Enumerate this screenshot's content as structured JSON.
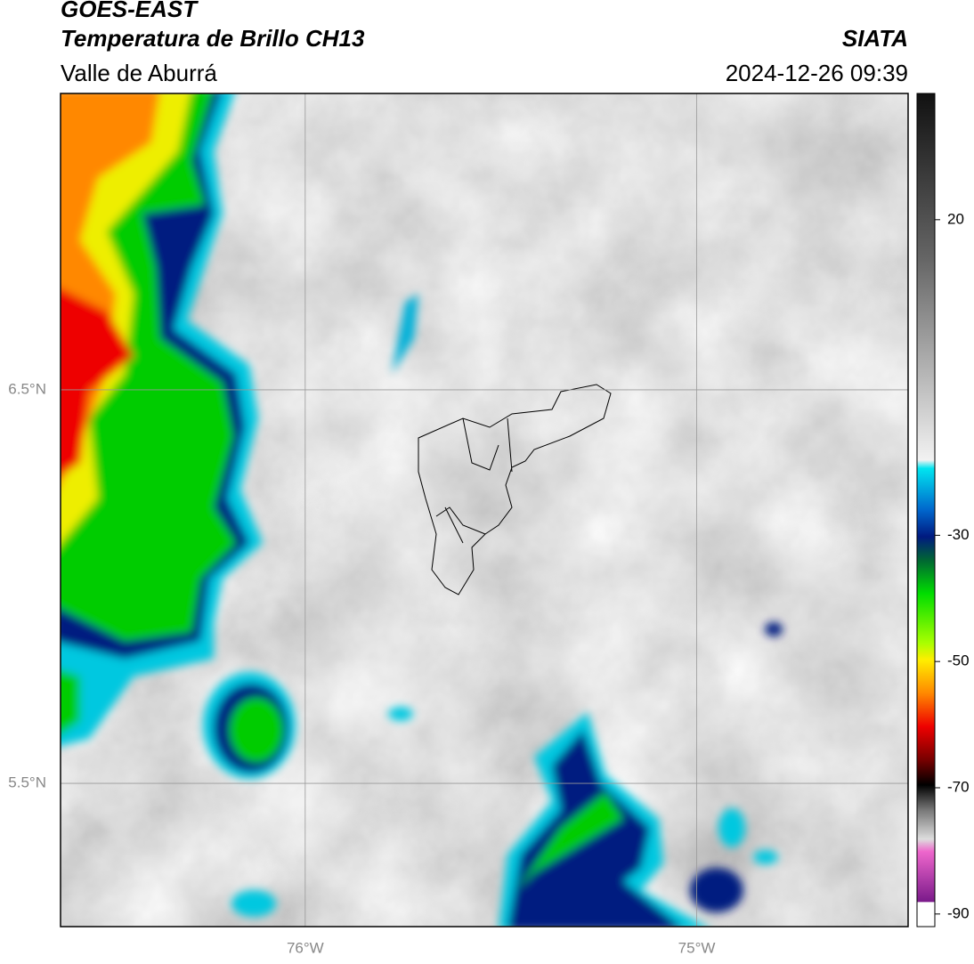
{
  "header": {
    "satellite": "GOES-EAST",
    "product": "Temperatura de Brillo CH13",
    "region": "Valle de Aburrá",
    "source": "SIATA",
    "timestamp": "2024-12-26 09:39"
  },
  "map": {
    "lonlim": [
      -76.625,
      -74.46
    ],
    "latlim": [
      5.136,
      7.253
    ],
    "lonticks": [
      {
        "value": -76,
        "label": "76°W"
      },
      {
        "value": -75,
        "label": "75°W"
      }
    ],
    "latticks": [
      {
        "value": 6.5,
        "label": "6.5°N"
      },
      {
        "value": 5.5,
        "label": "5.5°N"
      }
    ],
    "grid": true
  },
  "colorbar": {
    "lim": [
      -92,
      40
    ],
    "ticks": [
      20,
      -30,
      -50,
      -70,
      -90
    ]
  }
}
